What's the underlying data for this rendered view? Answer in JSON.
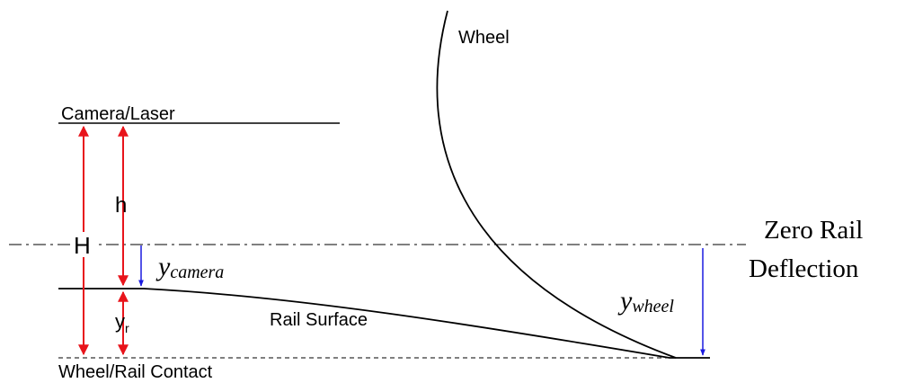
{
  "labels": {
    "wheel": "Wheel",
    "camera_laser": "Camera/Laser",
    "h": "h",
    "H": "H",
    "zero_rail_deflection": [
      "Zero Rail",
      "Deflection"
    ],
    "y_camera": {
      "symbol": "y",
      "subscript": "camera"
    },
    "y_r": {
      "symbol": "y",
      "subscript": "r"
    },
    "rail_surface": "Rail Surface",
    "y_wheel": {
      "symbol": "y",
      "subscript": "wheel"
    },
    "contact": "Wheel/Rail Contact"
  }
}
